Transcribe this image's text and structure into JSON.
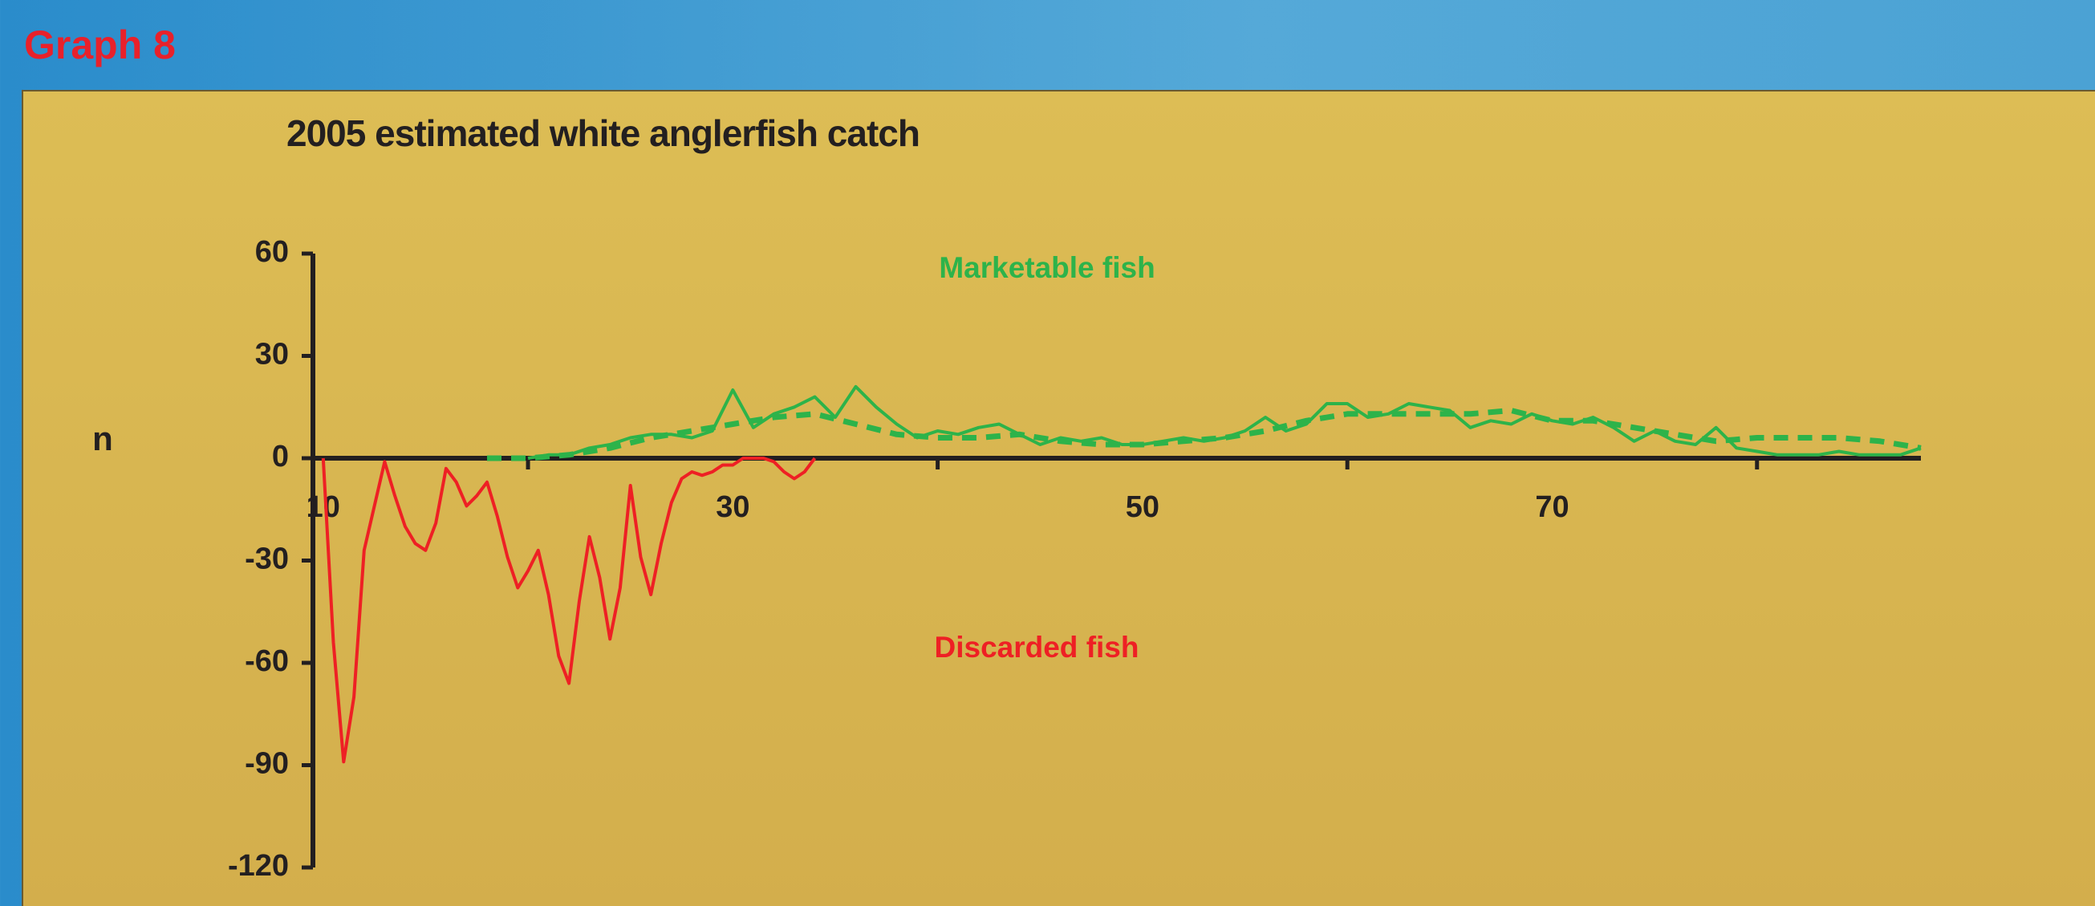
{
  "page_label": "Graph 8",
  "chart_data": {
    "type": "line",
    "title": "2005 estimated white anglerfish catch",
    "ylabel": "n",
    "xlim": [
      9.5,
      88
    ],
    "xticks": [
      10,
      30,
      50,
      70
    ],
    "xticks_minor": [
      20,
      40,
      60,
      80
    ],
    "ylim": [
      -120,
      60
    ],
    "yticks": [
      60,
      30,
      0,
      -30,
      -60,
      -90,
      -120
    ],
    "series": [
      {
        "name": "Marketable fish",
        "color": "#2db34a",
        "dashed": false,
        "x": [
          20,
          21,
          22,
          23,
          24,
          25,
          26,
          27,
          28,
          29,
          30,
          31,
          32,
          33,
          34,
          35,
          36,
          37,
          38,
          39,
          40,
          41,
          42,
          43,
          44,
          45,
          46,
          47,
          48,
          49,
          50,
          51,
          52,
          53,
          54,
          55,
          56,
          57,
          58,
          59,
          60,
          61,
          62,
          63,
          64,
          65,
          66,
          67,
          68,
          69,
          70,
          71,
          72,
          73,
          74,
          75,
          76,
          77,
          78,
          79,
          80,
          81,
          82,
          83,
          84,
          85,
          86,
          87,
          88
        ],
        "values": [
          0,
          1,
          1,
          3,
          4,
          6,
          7,
          7,
          6,
          8,
          20,
          9,
          13,
          15,
          18,
          12,
          21,
          15,
          10,
          6,
          8,
          7,
          9,
          10,
          7,
          4,
          6,
          5,
          6,
          4,
          4,
          5,
          6,
          5,
          6,
          8,
          12,
          8,
          10,
          16,
          16,
          12,
          13,
          16,
          15,
          14,
          9,
          11,
          10,
          13,
          11,
          10,
          12,
          9,
          5,
          8,
          5,
          4,
          9,
          3,
          2,
          1,
          1,
          1,
          2,
          1,
          1,
          1,
          3
        ]
      },
      {
        "color": "#2db34a",
        "dashed": true,
        "x": [
          18,
          20,
          22,
          24,
          26,
          28,
          30,
          32,
          34,
          36,
          38,
          40,
          42,
          44,
          46,
          48,
          50,
          52,
          54,
          56,
          58,
          60,
          62,
          64,
          66,
          68,
          70,
          72,
          74,
          76,
          78,
          80,
          82,
          84,
          86,
          88
        ],
        "values": [
          0,
          0,
          1,
          3,
          6,
          8,
          10,
          12,
          13,
          10,
          7,
          6,
          6,
          7,
          5,
          4,
          4,
          5,
          6,
          8,
          11,
          13,
          13,
          13,
          13,
          14,
          11,
          11,
          9,
          7,
          5,
          6,
          6,
          6,
          5,
          3
        ]
      },
      {
        "name": "Discarded fish",
        "color": "#ee2024",
        "dashed": false,
        "x": [
          10,
          10.5,
          11,
          11.5,
          12,
          13,
          13.5,
          14,
          14.5,
          15,
          15.5,
          16,
          16.5,
          17,
          17.5,
          18,
          18.5,
          19,
          19.5,
          20,
          20.5,
          21,
          21.5,
          22,
          22.5,
          23,
          23.5,
          24,
          24.5,
          25,
          25.5,
          26,
          26.5,
          27,
          27.5,
          28,
          28.5,
          29,
          29.5,
          30,
          30.5,
          31,
          31.5,
          32,
          32.5,
          33,
          33.5,
          34
        ],
        "values": [
          0,
          -54,
          -89,
          -70,
          -27,
          -1,
          -11,
          -20,
          -25,
          -27,
          -19,
          -3,
          -7,
          -14,
          -11,
          -7,
          -17,
          -29,
          -38,
          -33,
          -27,
          -40,
          -58,
          -66,
          -42,
          -23,
          -35,
          -53,
          -38,
          -8,
          -29,
          -40,
          -25,
          -13,
          -6,
          -4,
          -5,
          -4,
          -2,
          -2,
          0,
          0,
          0,
          -1,
          -4,
          -6,
          -4,
          0
        ]
      }
    ]
  }
}
